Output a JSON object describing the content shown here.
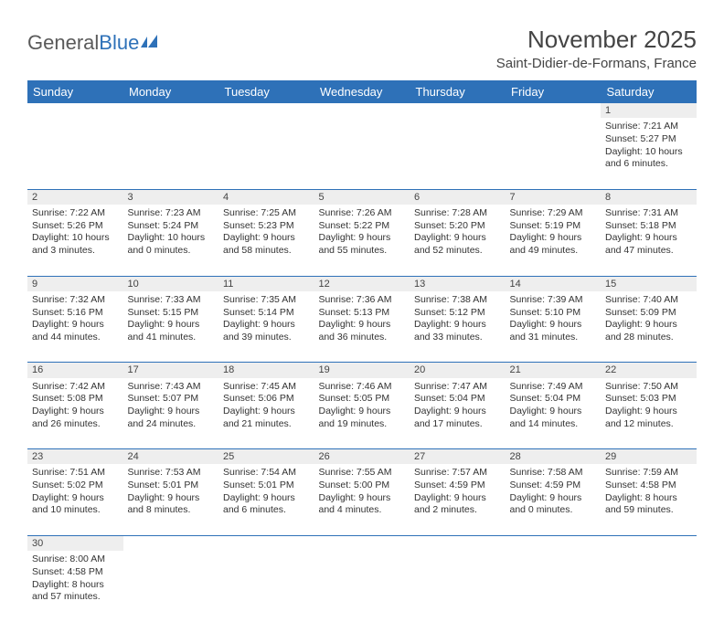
{
  "logo": {
    "part1": "General",
    "part2": "Blue"
  },
  "title": "November 2025",
  "location": "Saint-Didier-de-Formans, France",
  "colors": {
    "header_bg": "#2e71b8",
    "header_text": "#ffffff",
    "daynum_bg": "#eeeeee",
    "rule": "#2e71b8",
    "text": "#333333"
  },
  "dayNames": [
    "Sunday",
    "Monday",
    "Tuesday",
    "Wednesday",
    "Thursday",
    "Friday",
    "Saturday"
  ],
  "weeks": [
    [
      null,
      null,
      null,
      null,
      null,
      null,
      {
        "n": "1",
        "sr": "Sunrise: 7:21 AM",
        "ss": "Sunset: 5:27 PM",
        "dl": "Daylight: 10 hours and 6 minutes."
      }
    ],
    [
      {
        "n": "2",
        "sr": "Sunrise: 7:22 AM",
        "ss": "Sunset: 5:26 PM",
        "dl": "Daylight: 10 hours and 3 minutes."
      },
      {
        "n": "3",
        "sr": "Sunrise: 7:23 AM",
        "ss": "Sunset: 5:24 PM",
        "dl": "Daylight: 10 hours and 0 minutes."
      },
      {
        "n": "4",
        "sr": "Sunrise: 7:25 AM",
        "ss": "Sunset: 5:23 PM",
        "dl": "Daylight: 9 hours and 58 minutes."
      },
      {
        "n": "5",
        "sr": "Sunrise: 7:26 AM",
        "ss": "Sunset: 5:22 PM",
        "dl": "Daylight: 9 hours and 55 minutes."
      },
      {
        "n": "6",
        "sr": "Sunrise: 7:28 AM",
        "ss": "Sunset: 5:20 PM",
        "dl": "Daylight: 9 hours and 52 minutes."
      },
      {
        "n": "7",
        "sr": "Sunrise: 7:29 AM",
        "ss": "Sunset: 5:19 PM",
        "dl": "Daylight: 9 hours and 49 minutes."
      },
      {
        "n": "8",
        "sr": "Sunrise: 7:31 AM",
        "ss": "Sunset: 5:18 PM",
        "dl": "Daylight: 9 hours and 47 minutes."
      }
    ],
    [
      {
        "n": "9",
        "sr": "Sunrise: 7:32 AM",
        "ss": "Sunset: 5:16 PM",
        "dl": "Daylight: 9 hours and 44 minutes."
      },
      {
        "n": "10",
        "sr": "Sunrise: 7:33 AM",
        "ss": "Sunset: 5:15 PM",
        "dl": "Daylight: 9 hours and 41 minutes."
      },
      {
        "n": "11",
        "sr": "Sunrise: 7:35 AM",
        "ss": "Sunset: 5:14 PM",
        "dl": "Daylight: 9 hours and 39 minutes."
      },
      {
        "n": "12",
        "sr": "Sunrise: 7:36 AM",
        "ss": "Sunset: 5:13 PM",
        "dl": "Daylight: 9 hours and 36 minutes."
      },
      {
        "n": "13",
        "sr": "Sunrise: 7:38 AM",
        "ss": "Sunset: 5:12 PM",
        "dl": "Daylight: 9 hours and 33 minutes."
      },
      {
        "n": "14",
        "sr": "Sunrise: 7:39 AM",
        "ss": "Sunset: 5:10 PM",
        "dl": "Daylight: 9 hours and 31 minutes."
      },
      {
        "n": "15",
        "sr": "Sunrise: 7:40 AM",
        "ss": "Sunset: 5:09 PM",
        "dl": "Daylight: 9 hours and 28 minutes."
      }
    ],
    [
      {
        "n": "16",
        "sr": "Sunrise: 7:42 AM",
        "ss": "Sunset: 5:08 PM",
        "dl": "Daylight: 9 hours and 26 minutes."
      },
      {
        "n": "17",
        "sr": "Sunrise: 7:43 AM",
        "ss": "Sunset: 5:07 PM",
        "dl": "Daylight: 9 hours and 24 minutes."
      },
      {
        "n": "18",
        "sr": "Sunrise: 7:45 AM",
        "ss": "Sunset: 5:06 PM",
        "dl": "Daylight: 9 hours and 21 minutes."
      },
      {
        "n": "19",
        "sr": "Sunrise: 7:46 AM",
        "ss": "Sunset: 5:05 PM",
        "dl": "Daylight: 9 hours and 19 minutes."
      },
      {
        "n": "20",
        "sr": "Sunrise: 7:47 AM",
        "ss": "Sunset: 5:04 PM",
        "dl": "Daylight: 9 hours and 17 minutes."
      },
      {
        "n": "21",
        "sr": "Sunrise: 7:49 AM",
        "ss": "Sunset: 5:04 PM",
        "dl": "Daylight: 9 hours and 14 minutes."
      },
      {
        "n": "22",
        "sr": "Sunrise: 7:50 AM",
        "ss": "Sunset: 5:03 PM",
        "dl": "Daylight: 9 hours and 12 minutes."
      }
    ],
    [
      {
        "n": "23",
        "sr": "Sunrise: 7:51 AM",
        "ss": "Sunset: 5:02 PM",
        "dl": "Daylight: 9 hours and 10 minutes."
      },
      {
        "n": "24",
        "sr": "Sunrise: 7:53 AM",
        "ss": "Sunset: 5:01 PM",
        "dl": "Daylight: 9 hours and 8 minutes."
      },
      {
        "n": "25",
        "sr": "Sunrise: 7:54 AM",
        "ss": "Sunset: 5:01 PM",
        "dl": "Daylight: 9 hours and 6 minutes."
      },
      {
        "n": "26",
        "sr": "Sunrise: 7:55 AM",
        "ss": "Sunset: 5:00 PM",
        "dl": "Daylight: 9 hours and 4 minutes."
      },
      {
        "n": "27",
        "sr": "Sunrise: 7:57 AM",
        "ss": "Sunset: 4:59 PM",
        "dl": "Daylight: 9 hours and 2 minutes."
      },
      {
        "n": "28",
        "sr": "Sunrise: 7:58 AM",
        "ss": "Sunset: 4:59 PM",
        "dl": "Daylight: 9 hours and 0 minutes."
      },
      {
        "n": "29",
        "sr": "Sunrise: 7:59 AM",
        "ss": "Sunset: 4:58 PM",
        "dl": "Daylight: 8 hours and 59 minutes."
      }
    ],
    [
      {
        "n": "30",
        "sr": "Sunrise: 8:00 AM",
        "ss": "Sunset: 4:58 PM",
        "dl": "Daylight: 8 hours and 57 minutes."
      },
      null,
      null,
      null,
      null,
      null,
      null
    ]
  ]
}
